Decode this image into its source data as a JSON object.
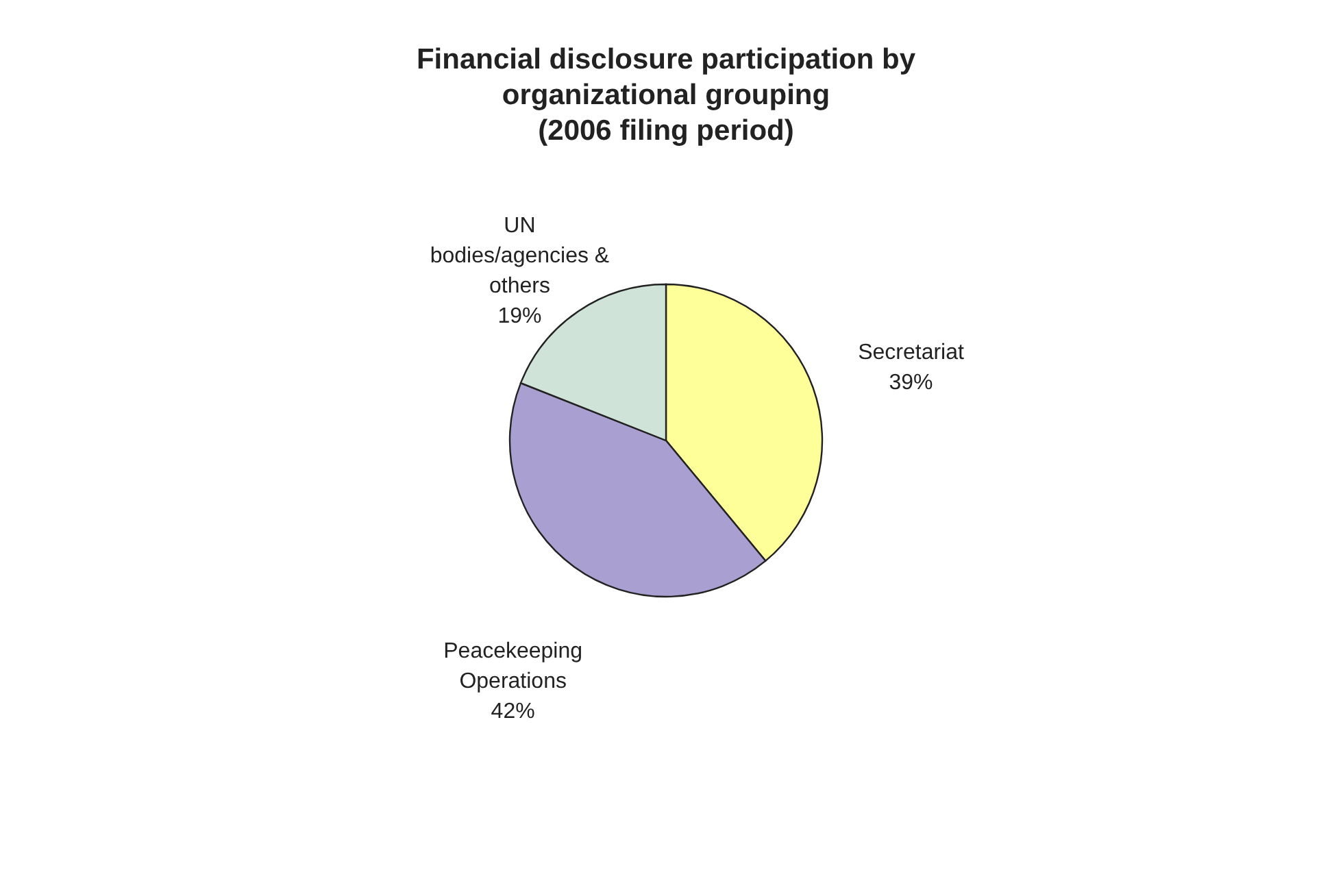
{
  "chart_data": {
    "type": "pie",
    "title": "Financial disclosure participation by\norganizational grouping\n(2006 filing period)",
    "categories": [
      "Secretariat",
      "Peacekeeping\nOperations",
      "UN\nbodies/agencies &\nothers"
    ],
    "values": [
      39,
      42,
      19
    ],
    "value_labels": [
      "39%",
      "42%",
      "19%"
    ],
    "colors": [
      "#ffff99",
      "#a99fd0",
      "#cfe3d8"
    ],
    "legend": false
  }
}
